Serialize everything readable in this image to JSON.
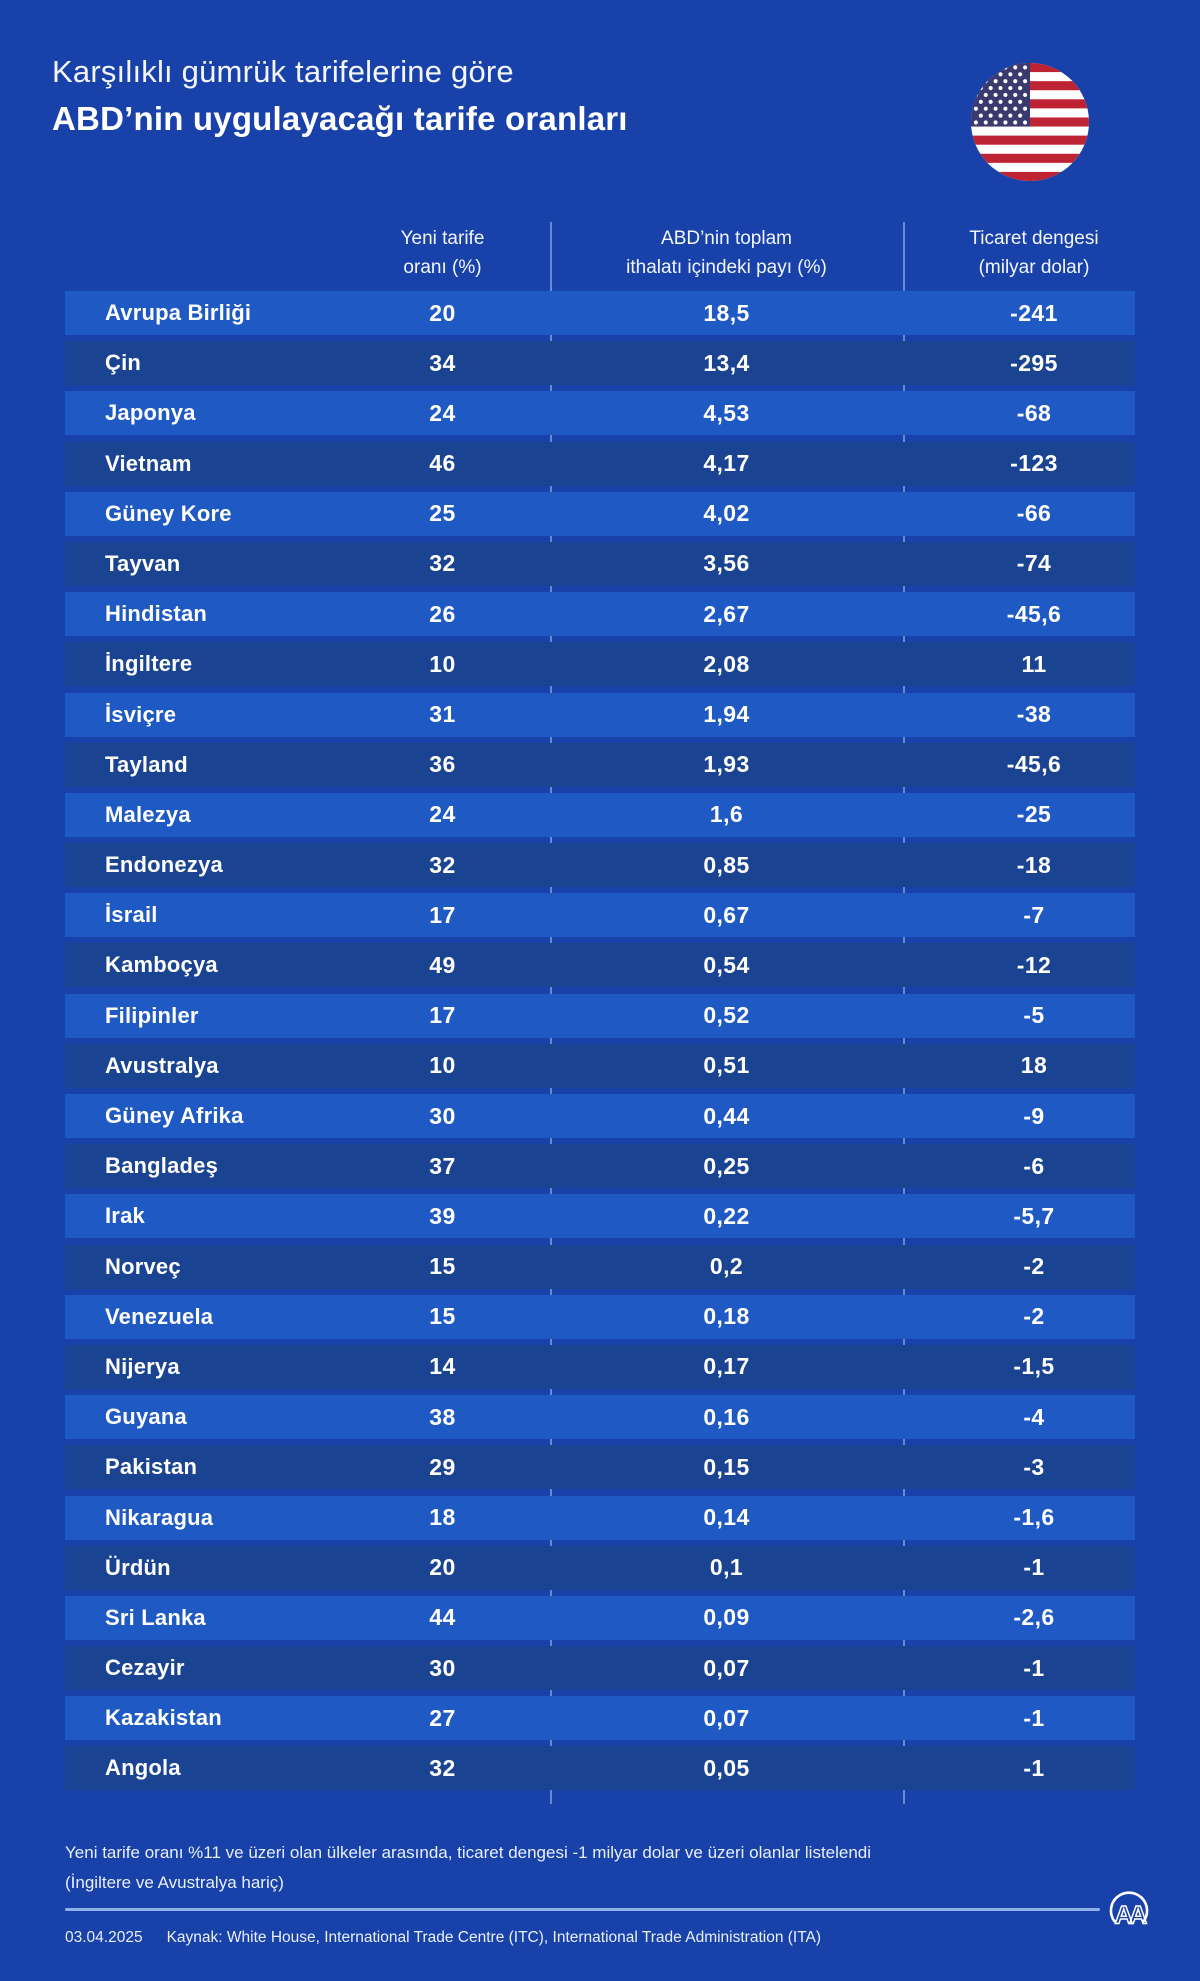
{
  "page": {
    "background": "#1841A9",
    "row_color_odd": "#1E59C4",
    "row_color_even": "#1A4492",
    "divider_color": "#AAC8F5",
    "rule_color": "#8FB2E8",
    "text_color": "#FFFFFF"
  },
  "header": {
    "title_line1": "Karşılıklı gümrük tarifelerine göre",
    "title_line2": "ABD’nin uygulayacağı tarife oranları",
    "flag_icon": "us-flag-roundel",
    "flag_colors": {
      "red": "#BE2334",
      "white": "#FFFFFF",
      "navy": "#3A3A6E"
    }
  },
  "table": {
    "columns": [
      {
        "line1": "",
        "line2": ""
      },
      {
        "line1": "Yeni tarife",
        "line2": "oranı (%)"
      },
      {
        "line1": "ABD’nin toplam",
        "line2": "ithalatı içindeki payı (%)"
      },
      {
        "line1": "Ticaret dengesi",
        "line2": "(milyar dolar)"
      }
    ],
    "rows": [
      {
        "country": "Avrupa Birliği",
        "tariff": "20",
        "share": "18,5",
        "balance": "-241"
      },
      {
        "country": "Çin",
        "tariff": "34",
        "share": "13,4",
        "balance": "-295"
      },
      {
        "country": "Japonya",
        "tariff": "24",
        "share": "4,53",
        "balance": "-68"
      },
      {
        "country": "Vietnam",
        "tariff": "46",
        "share": "4,17",
        "balance": "-123"
      },
      {
        "country": "Güney Kore",
        "tariff": "25",
        "share": "4,02",
        "balance": "-66"
      },
      {
        "country": "Tayvan",
        "tariff": "32",
        "share": "3,56",
        "balance": "-74"
      },
      {
        "country": "Hindistan",
        "tariff": "26",
        "share": "2,67",
        "balance": "-45,6"
      },
      {
        "country": "İngiltere",
        "tariff": "10",
        "share": "2,08",
        "balance": "11"
      },
      {
        "country": "İsviçre",
        "tariff": "31",
        "share": "1,94",
        "balance": "-38"
      },
      {
        "country": "Tayland",
        "tariff": "36",
        "share": "1,93",
        "balance": "-45,6"
      },
      {
        "country": "Malezya",
        "tariff": "24",
        "share": "1,6",
        "balance": "-25"
      },
      {
        "country": "Endonezya",
        "tariff": "32",
        "share": "0,85",
        "balance": "-18"
      },
      {
        "country": "İsrail",
        "tariff": "17",
        "share": "0,67",
        "balance": "-7"
      },
      {
        "country": "Kamboçya",
        "tariff": "49",
        "share": "0,54",
        "balance": "-12"
      },
      {
        "country": "Filipinler",
        "tariff": "17",
        "share": "0,52",
        "balance": "-5"
      },
      {
        "country": "Avustralya",
        "tariff": "10",
        "share": "0,51",
        "balance": "18"
      },
      {
        "country": "Güney Afrika",
        "tariff": "30",
        "share": "0,44",
        "balance": "-9"
      },
      {
        "country": "Bangladeş",
        "tariff": "37",
        "share": "0,25",
        "balance": "-6"
      },
      {
        "country": "Irak",
        "tariff": "39",
        "share": "0,22",
        "balance": "-5,7"
      },
      {
        "country": "Norveç",
        "tariff": "15",
        "share": "0,2",
        "balance": "-2"
      },
      {
        "country": "Venezuela",
        "tariff": "15",
        "share": "0,18",
        "balance": "-2"
      },
      {
        "country": "Nijerya",
        "tariff": "14",
        "share": "0,17",
        "balance": "-1,5"
      },
      {
        "country": "Guyana",
        "tariff": "38",
        "share": "0,16",
        "balance": "-4"
      },
      {
        "country": "Pakistan",
        "tariff": "29",
        "share": "0,15",
        "balance": "-3"
      },
      {
        "country": "Nikaragua",
        "tariff": "18",
        "share": "0,14",
        "balance": "-1,6"
      },
      {
        "country": "Ürdün",
        "tariff": "20",
        "share": "0,1",
        "balance": "-1"
      },
      {
        "country": "Sri Lanka",
        "tariff": "44",
        "share": "0,09",
        "balance": "-2,6"
      },
      {
        "country": "Cezayir",
        "tariff": "30",
        "share": "0,07",
        "balance": "-1"
      },
      {
        "country": "Kazakistan",
        "tariff": "27",
        "share": "0,07",
        "balance": "-1"
      },
      {
        "country": "Angola",
        "tariff": "32",
        "share": "0,05",
        "balance": "-1"
      }
    ]
  },
  "footnote": {
    "line1": "Yeni tarife oranı %11 ve üzeri olan ülkeler arasında, ticaret dengesi -1 milyar dolar ve üzeri olanlar listelendi",
    "line2": "(İngiltere ve Avustralya hariç)"
  },
  "footer": {
    "date": "03.04.2025",
    "source": "Kaynak: White House, International Trade Centre (ITC), International Trade Administration (ITA)",
    "logo": "anadolu-agency-aa"
  },
  "chart_data": {
    "type": "table",
    "title": "Karşılıklı gümrük tarifelerine göre ABD’nin uygulayacağı tarife oranları",
    "columns": [
      "",
      "Yeni tarife oranı (%)",
      "ABD’nin toplam ithalatı içindeki payı (%)",
      "Ticaret dengesi (milyar dolar)"
    ],
    "rows": [
      [
        "Avrupa Birliği",
        20,
        18.5,
        -241
      ],
      [
        "Çin",
        34,
        13.4,
        -295
      ],
      [
        "Japonya",
        24,
        4.53,
        -68
      ],
      [
        "Vietnam",
        46,
        4.17,
        -123
      ],
      [
        "Güney Kore",
        25,
        4.02,
        -66
      ],
      [
        "Tayvan",
        32,
        3.56,
        -74
      ],
      [
        "Hindistan",
        26,
        2.67,
        -45.6
      ],
      [
        "İngiltere",
        10,
        2.08,
        11
      ],
      [
        "İsviçre",
        31,
        1.94,
        -38
      ],
      [
        "Tayland",
        36,
        1.93,
        -45.6
      ],
      [
        "Malezya",
        24,
        1.6,
        -25
      ],
      [
        "Endonezya",
        32,
        0.85,
        -18
      ],
      [
        "İsrail",
        17,
        0.67,
        -7
      ],
      [
        "Kamboçya",
        49,
        0.54,
        -12
      ],
      [
        "Filipinler",
        17,
        0.52,
        -5
      ],
      [
        "Avustralya",
        10,
        0.51,
        18
      ],
      [
        "Güney Afrika",
        30,
        0.44,
        -9
      ],
      [
        "Bangladeş",
        37,
        0.25,
        -6
      ],
      [
        "Irak",
        39,
        0.22,
        -5.7
      ],
      [
        "Norveç",
        15,
        0.2,
        -2
      ],
      [
        "Venezuela",
        15,
        0.18,
        -2
      ],
      [
        "Nijerya",
        14,
        0.17,
        -1.5
      ],
      [
        "Guyana",
        38,
        0.16,
        -4
      ],
      [
        "Pakistan",
        29,
        0.15,
        -3
      ],
      [
        "Nikaragua",
        18,
        0.14,
        -1.6
      ],
      [
        "Ürdün",
        20,
        0.1,
        -1
      ],
      [
        "Sri Lanka",
        44,
        0.09,
        -2.6
      ],
      [
        "Cezayir",
        30,
        0.07,
        -1
      ],
      [
        "Kazakistan",
        27,
        0.07,
        -1
      ],
      [
        "Angola",
        32,
        0.05,
        -1
      ]
    ]
  }
}
